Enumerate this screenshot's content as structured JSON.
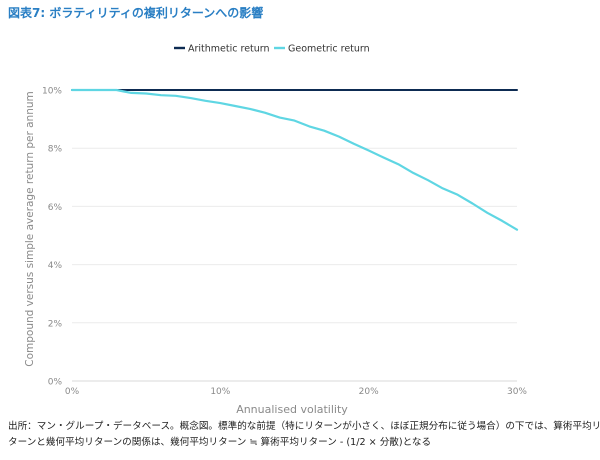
{
  "figure": {
    "title": "図表7: ボラティリティの複利リターンへの影響",
    "source_line1": "出所：マン・グループ・データベース。概念図。標準的な前提（特にリターンが小さく、ほぼ正規分布に従う場合）の下では、算術平均リ",
    "source_line2": "ターンと幾何平均リターンの関係は、幾何平均リターン ≒ 算術平均リターン - (1/2 × 分散)となる"
  },
  "colors": {
    "arithmetic": "#0d2b52",
    "geometric": "#5fd6e3",
    "title": "#2a7fc4",
    "axis_text": "#8a8a8a",
    "grid": "#ececec"
  },
  "chart_data": {
    "type": "line",
    "xlabel": "Annualised volatility",
    "ylabel": "Compound versus simple average return per annum",
    "xlim": [
      0,
      30
    ],
    "ylim": [
      0,
      10
    ],
    "x_ticks": [
      0,
      10,
      20,
      30
    ],
    "x_tick_labels": [
      "0%",
      "10%",
      "20%",
      "30%"
    ],
    "y_ticks": [
      0,
      2,
      4,
      6,
      8,
      10
    ],
    "y_tick_labels": [
      "0%",
      "2%",
      "4%",
      "6%",
      "8%",
      "10%"
    ],
    "grid": "horizontal",
    "legend": "top-center",
    "series": [
      {
        "name": "Arithmetic return",
        "color_key": "arithmetic",
        "x": [
          0,
          30
        ],
        "y": [
          10,
          10
        ]
      },
      {
        "name": "Geometric return",
        "color_key": "geometric",
        "x": [
          0,
          1,
          2,
          3,
          3.5,
          4,
          5,
          6,
          7,
          8,
          9,
          10,
          11,
          12,
          13,
          14,
          15,
          16,
          17,
          18,
          19,
          20,
          21,
          22,
          23,
          24,
          25,
          26,
          27,
          28,
          29,
          30
        ],
        "y": [
          10,
          10,
          10,
          10,
          9.95,
          9.9,
          9.88,
          9.82,
          9.8,
          9.72,
          9.63,
          9.55,
          9.45,
          9.35,
          9.22,
          9.05,
          8.95,
          8.75,
          8.6,
          8.4,
          8.15,
          7.92,
          7.68,
          7.45,
          7.15,
          6.9,
          6.62,
          6.4,
          6.1,
          5.78,
          5.5,
          5.2
        ]
      }
    ]
  }
}
